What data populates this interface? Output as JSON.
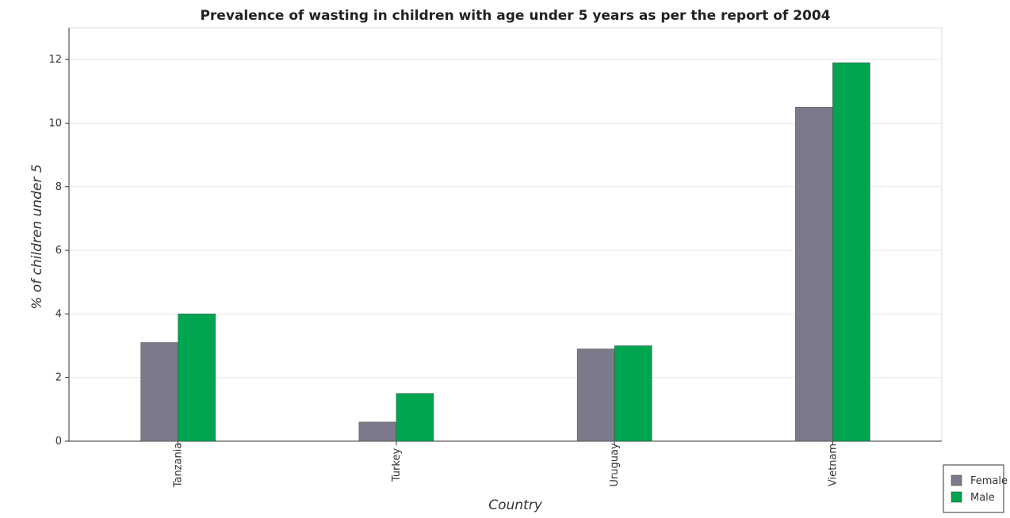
{
  "chart_data": {
    "type": "bar",
    "title": "Prevalence of wasting in children with age under 5 years as per the report of 2004",
    "xlabel": "Country",
    "ylabel": "% of children under 5",
    "categories": [
      "Tanzania",
      "Turkey",
      "Uruguay",
      "Vietnam"
    ],
    "series": [
      {
        "name": "Female",
        "values": [
          3.1,
          0.6,
          2.9,
          10.5
        ],
        "color": "#7a7a8a"
      },
      {
        "name": "Male",
        "values": [
          4.0,
          1.5,
          3.0,
          11.9
        ],
        "color": "#00a550"
      }
    ],
    "ylim": [
      0,
      13
    ],
    "yticks": [
      0,
      2,
      4,
      6,
      8,
      10,
      12
    ],
    "grid": true,
    "legend_position": "bottom-right"
  }
}
